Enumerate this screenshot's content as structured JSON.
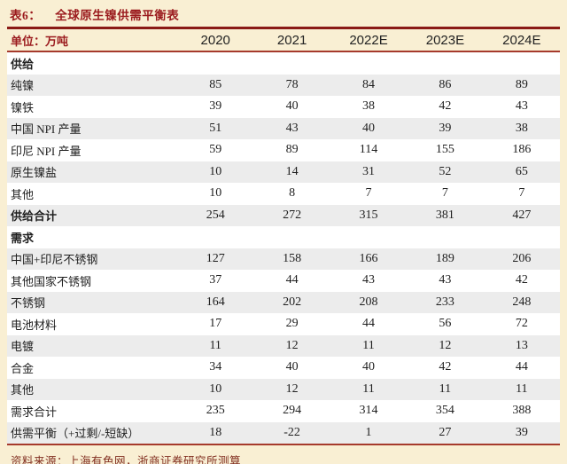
{
  "colors": {
    "page_bg": "#F9EFD3",
    "accent_red": "#9B1B1E",
    "rule_dark_red": "#8A1A15",
    "rule_red": "#A63A2C",
    "stripe_gray": "#ECECEC",
    "footer_red": "#823022"
  },
  "title": {
    "tag": "表6：",
    "text": "全球原生镍供需平衡表"
  },
  "table": {
    "unit_label": "单位：万吨",
    "columns": [
      "2020",
      "2021",
      "2022E",
      "2023E",
      "2024E"
    ],
    "rows": [
      {
        "key": "supply-section",
        "label": "供给",
        "bold": true,
        "values": []
      },
      {
        "key": "pure-nickel",
        "label": "纯镍",
        "bold": false,
        "values": [
          85,
          78,
          84,
          86,
          89
        ]
      },
      {
        "key": "ferronickel",
        "label": "镍铁",
        "bold": false,
        "values": [
          39,
          40,
          38,
          42,
          43
        ]
      },
      {
        "key": "china-npi-output",
        "label": "中国 NPI 产量",
        "bold": false,
        "values": [
          51,
          43,
          40,
          39,
          38
        ]
      },
      {
        "key": "indonesia-npi-output",
        "label": "印尼 NPI 产量",
        "bold": false,
        "values": [
          59,
          89,
          114,
          155,
          186
        ]
      },
      {
        "key": "primary-nickel-salt",
        "label": "原生镍盐",
        "bold": false,
        "values": [
          10,
          14,
          31,
          52,
          65
        ]
      },
      {
        "key": "supply-other",
        "label": "其他",
        "bold": false,
        "values": [
          10,
          8,
          7,
          7,
          7
        ]
      },
      {
        "key": "supply-total",
        "label": "供给合计",
        "bold": true,
        "values": [
          254,
          272,
          315,
          381,
          427
        ]
      },
      {
        "key": "demand-section",
        "label": "需求",
        "bold": true,
        "values": []
      },
      {
        "key": "china-indonesia-stainless",
        "label": "中国+印尼不锈钢",
        "bold": false,
        "values": [
          127,
          158,
          166,
          189,
          206
        ]
      },
      {
        "key": "other-countries-stainless",
        "label": "其他国家不锈钢",
        "bold": false,
        "values": [
          37,
          44,
          43,
          43,
          42
        ]
      },
      {
        "key": "stainless-steel",
        "label": "不锈钢",
        "bold": false,
        "values": [
          164,
          202,
          208,
          233,
          248
        ]
      },
      {
        "key": "battery-materials",
        "label": "电池材料",
        "bold": false,
        "values": [
          17,
          29,
          44,
          56,
          72
        ]
      },
      {
        "key": "electroplating",
        "label": "电镀",
        "bold": false,
        "values": [
          11,
          12,
          11,
          12,
          13
        ]
      },
      {
        "key": "alloy",
        "label": "合金",
        "bold": false,
        "values": [
          34,
          40,
          40,
          42,
          44
        ]
      },
      {
        "key": "demand-other",
        "label": "其他",
        "bold": false,
        "values": [
          10,
          12,
          11,
          11,
          11
        ]
      },
      {
        "key": "demand-total",
        "label": "需求合计",
        "bold": false,
        "values": [
          235,
          294,
          314,
          354,
          388
        ]
      },
      {
        "key": "balance",
        "label": "供需平衡（+过剩/-短缺）",
        "bold": false,
        "values": [
          18,
          -22,
          1,
          27,
          39
        ]
      }
    ]
  },
  "footer": {
    "source": "资料来源：上海有色网，浙商证券研究所测算"
  }
}
